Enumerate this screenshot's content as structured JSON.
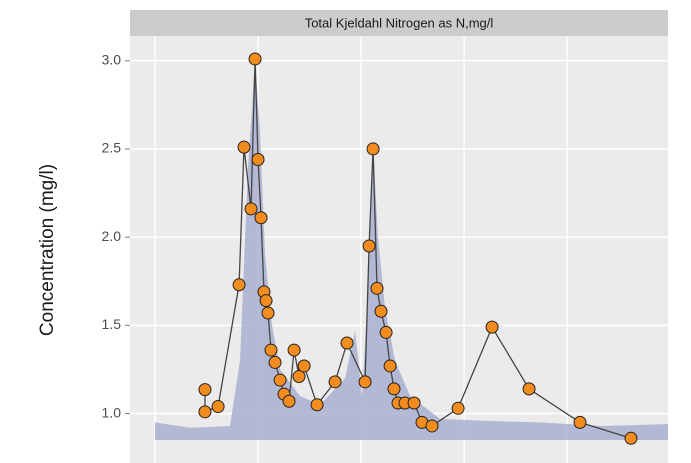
{
  "chart_data": {
    "type": "line",
    "facet_title": "Total Kjeldahl Nitrogen as N,mg/l",
    "ylabel": "Concentration (mg/l)",
    "xlim": [
      -0.243,
      4.98
    ],
    "ylim": [
      0.72,
      3.14
    ],
    "xticks": [
      0,
      1,
      2,
      3,
      4
    ],
    "yticks": [
      {
        "value": 1,
        "label": "1.0"
      },
      1.5,
      {
        "value": 2,
        "label": "2.0"
      },
      2.5,
      {
        "value": 3,
        "label": "3.0"
      }
    ],
    "grid": true,
    "series": [
      {
        "color": "#f28c1e",
        "x": [
          0.485,
          0.485,
          0.612,
          0.816,
          0.864,
          0.932,
          0.971,
          1.0,
          1.029,
          1.058,
          1.078,
          1.097,
          1.126,
          1.165,
          1.214,
          1.252,
          1.301,
          1.35,
          1.398,
          1.447,
          1.573,
          1.748,
          1.864,
          2.039,
          2.078,
          2.117,
          2.155,
          2.194,
          2.243,
          2.282,
          2.32,
          2.359,
          2.427,
          2.515,
          2.592,
          2.689,
          2.942,
          3.272,
          3.631,
          4.126,
          4.621
        ],
        "values": [
          1.136,
          1.01,
          1.04,
          1.73,
          2.51,
          2.16,
          3.01,
          2.44,
          2.11,
          1.69,
          1.64,
          1.57,
          1.36,
          1.29,
          1.19,
          1.11,
          1.07,
          1.36,
          1.21,
          1.27,
          1.05,
          1.18,
          1.4,
          1.18,
          1.95,
          2.5,
          1.71,
          1.58,
          1.46,
          1.27,
          1.14,
          1.06,
          1.06,
          1.06,
          0.95,
          0.93,
          1.03,
          1.49,
          1.14,
          0.95,
          0.86
        ]
      }
    ],
    "area": {
      "color": "#a9b0d0",
      "baseline": 0.85,
      "x": [
        0,
        0.34,
        0.728,
        0.825,
        0.903,
        0.971,
        1.019,
        1.068,
        1.136,
        1.214,
        1.408,
        1.602,
        1.845,
        1.942,
        2.01,
        2.068,
        2.117,
        2.165,
        2.233,
        2.33,
        2.476,
        2.767,
        3.155,
        3.738,
        4.32,
        4.98
      ],
      "values": [
        0.95,
        0.92,
        0.93,
        1.3,
        2.4,
        3.0,
        2.6,
        1.9,
        1.5,
        1.25,
        1.1,
        1.05,
        1.2,
        1.47,
        1.1,
        1.7,
        2.5,
        2.0,
        1.6,
        1.3,
        1.1,
        0.97,
        0.96,
        0.95,
        0.93,
        0.94
      ]
    }
  }
}
